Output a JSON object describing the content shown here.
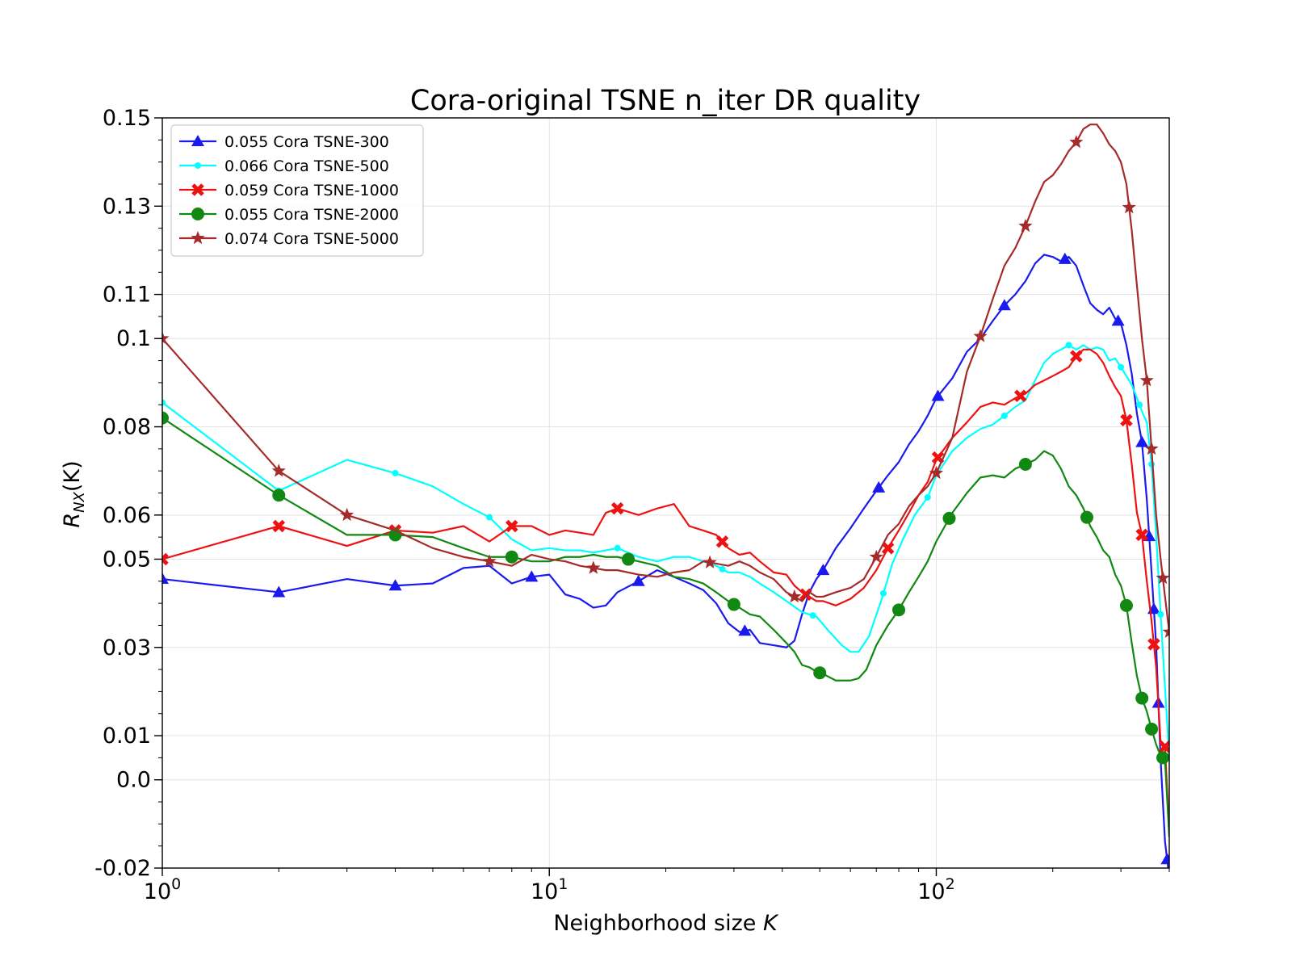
{
  "chart_data": {
    "type": "line",
    "title": "Cora-original TSNE n_iter DR quality",
    "xlabel": "Neighborhood size K",
    "xlabel_parts": {
      "text": "Neighborhood size ",
      "var": "K"
    },
    "ylabel": "R_NX(K)",
    "ylabel_parts": {
      "main": "R",
      "sub": "NX",
      "rest": "(K)"
    },
    "x_scale": "log",
    "xlim": [
      1,
      400
    ],
    "ylim": [
      -0.02,
      0.15
    ],
    "grid": true,
    "legend_position": "upper-left",
    "x_ticks": [
      {
        "value": 1,
        "base": "10",
        "exp": "0"
      },
      {
        "value": 10,
        "base": "10",
        "exp": "1"
      },
      {
        "value": 100,
        "base": "10",
        "exp": "2"
      }
    ],
    "y_ticks": [
      {
        "value": 0.15,
        "label": "0.15"
      },
      {
        "value": 0.13,
        "label": "0.13"
      },
      {
        "value": 0.11,
        "label": "0.11"
      },
      {
        "value": 0.1,
        "label": "0.1"
      },
      {
        "value": 0.08,
        "label": "0.08"
      },
      {
        "value": 0.06,
        "label": "0.06"
      },
      {
        "value": 0.05,
        "label": "0.05"
      },
      {
        "value": 0.03,
        "label": "0.03"
      },
      {
        "value": 0.01,
        "label": "0.01"
      },
      {
        "value": 0.0,
        "label": "0.0"
      },
      {
        "value": -0.02,
        "label": "-0.02"
      }
    ],
    "series": [
      {
        "name": "0.055 Cora TSNE-300",
        "color": "#1a1aee",
        "marker": "triangle",
        "x": [
          1,
          2,
          3,
          4,
          5,
          6,
          7,
          8,
          9,
          10,
          11,
          12,
          13,
          14,
          15,
          17,
          19,
          21,
          23,
          25,
          27,
          29,
          31,
          33,
          35,
          38,
          41,
          43,
          45,
          47,
          49,
          51,
          55,
          60,
          65,
          70,
          75,
          80,
          85,
          90,
          95,
          100,
          110,
          120,
          130,
          140,
          150,
          160,
          170,
          180,
          190,
          200,
          210,
          220,
          230,
          240,
          250,
          260,
          270,
          280,
          290,
          300,
          310,
          320,
          330,
          340,
          350,
          360,
          370,
          380,
          390,
          400
        ],
        "y": [
          0.0455,
          0.0425,
          0.0455,
          0.044,
          0.0445,
          0.048,
          0.0485,
          0.0445,
          0.046,
          0.0465,
          0.042,
          0.041,
          0.039,
          0.0395,
          0.0425,
          0.045,
          0.0475,
          0.046,
          0.0445,
          0.043,
          0.04,
          0.0355,
          0.0335,
          0.034,
          0.031,
          0.0305,
          0.03,
          0.0315,
          0.0375,
          0.0425,
          0.0455,
          0.0475,
          0.0525,
          0.057,
          0.0615,
          0.0655,
          0.069,
          0.072,
          0.076,
          0.079,
          0.0825,
          0.0865,
          0.091,
          0.097,
          0.1,
          0.104,
          0.1075,
          0.11,
          0.113,
          0.117,
          0.119,
          0.1185,
          0.1175,
          0.1185,
          0.1165,
          0.112,
          0.108,
          0.1065,
          0.1055,
          0.107,
          0.1045,
          0.1035,
          0.0985,
          0.092,
          0.083,
          0.0765,
          0.0635,
          0.047,
          0.0305,
          0.0045,
          -0.014,
          -0.022
        ]
      },
      {
        "name": "0.066 Cora TSNE-500",
        "color": "#00ffff",
        "marker": "dot",
        "x": [
          1,
          2,
          3,
          4,
          5,
          6,
          7,
          8,
          9,
          10,
          11,
          12,
          13,
          14,
          15,
          17,
          19,
          21,
          23,
          25,
          27,
          29,
          31,
          33,
          35,
          38,
          41,
          45,
          49,
          53,
          57,
          60,
          63,
          67,
          72,
          77,
          82,
          88,
          95,
          100,
          110,
          120,
          130,
          140,
          150,
          160,
          170,
          180,
          190,
          200,
          210,
          220,
          230,
          240,
          250,
          260,
          270,
          280,
          290,
          300,
          310,
          320,
          330,
          340,
          350,
          360,
          370,
          380,
          390,
          400
        ],
        "y": [
          0.0855,
          0.0655,
          0.0725,
          0.0695,
          0.0665,
          0.0625,
          0.0595,
          0.0545,
          0.052,
          0.0525,
          0.052,
          0.052,
          0.0515,
          0.052,
          0.0525,
          0.0505,
          0.0495,
          0.0505,
          0.0505,
          0.0495,
          0.0485,
          0.047,
          0.047,
          0.046,
          0.0445,
          0.0425,
          0.0405,
          0.038,
          0.037,
          0.0335,
          0.0305,
          0.029,
          0.029,
          0.0325,
          0.0405,
          0.049,
          0.0545,
          0.06,
          0.064,
          0.069,
          0.0745,
          0.0775,
          0.0795,
          0.0805,
          0.0825,
          0.0845,
          0.086,
          0.0905,
          0.0945,
          0.0965,
          0.0975,
          0.0985,
          0.0975,
          0.0985,
          0.0975,
          0.098,
          0.0975,
          0.095,
          0.0955,
          0.0935,
          0.0915,
          0.0895,
          0.0865,
          0.0835,
          0.081,
          0.0715,
          0.0555,
          0.0375,
          0.021,
          0.005
        ]
      },
      {
        "name": "0.059 Cora TSNE-1000",
        "color": "#ee1111",
        "marker": "x",
        "x": [
          1,
          2,
          3,
          4,
          5,
          6,
          7,
          8,
          9,
          10,
          11,
          12,
          13,
          14,
          15,
          17,
          19,
          21,
          23,
          25,
          27,
          29,
          31,
          33,
          35,
          38,
          41,
          43,
          45,
          47,
          49,
          51,
          55,
          60,
          65,
          70,
          75,
          80,
          85,
          90,
          95,
          100,
          110,
          120,
          130,
          140,
          150,
          160,
          170,
          180,
          190,
          200,
          210,
          220,
          230,
          240,
          250,
          260,
          270,
          280,
          290,
          300,
          310,
          320,
          330,
          340,
          350,
          360,
          370,
          380,
          390,
          400
        ],
        "y": [
          0.05,
          0.0575,
          0.053,
          0.0565,
          0.056,
          0.0575,
          0.054,
          0.0575,
          0.0575,
          0.0555,
          0.0565,
          0.056,
          0.0555,
          0.0605,
          0.0615,
          0.06,
          0.0615,
          0.0625,
          0.0575,
          0.0565,
          0.0555,
          0.0525,
          0.051,
          0.0515,
          0.0495,
          0.047,
          0.0465,
          0.044,
          0.0425,
          0.0415,
          0.0405,
          0.0405,
          0.0395,
          0.041,
          0.0435,
          0.0475,
          0.0525,
          0.0565,
          0.0605,
          0.0645,
          0.0675,
          0.0725,
          0.0775,
          0.081,
          0.0845,
          0.0855,
          0.085,
          0.0865,
          0.0875,
          0.0895,
          0.0905,
          0.0915,
          0.0925,
          0.0935,
          0.096,
          0.0975,
          0.0975,
          0.0965,
          0.0945,
          0.0915,
          0.089,
          0.087,
          0.0815,
          0.0715,
          0.0605,
          0.0555,
          0.045,
          0.036,
          0.0255,
          0.0085,
          0.0075,
          -0.012
        ]
      },
      {
        "name": "0.055 Cora TSNE-2000",
        "color": "#118811",
        "marker": "circle",
        "x": [
          1,
          2,
          3,
          4,
          5,
          6,
          7,
          8,
          9,
          10,
          11,
          12,
          13,
          14,
          15,
          17,
          19,
          21,
          23,
          25,
          27,
          29,
          31,
          33,
          35,
          38,
          41,
          43,
          45,
          47,
          49,
          51,
          55,
          60,
          63,
          66,
          70,
          75,
          80,
          85,
          90,
          95,
          100,
          110,
          120,
          130,
          140,
          150,
          160,
          170,
          180,
          190,
          200,
          210,
          220,
          230,
          240,
          250,
          260,
          270,
          280,
          290,
          300,
          310,
          320,
          330,
          340,
          350,
          360,
          370,
          380,
          390,
          400
        ],
        "y": [
          0.082,
          0.0645,
          0.0555,
          0.0555,
          0.055,
          0.0525,
          0.0505,
          0.0505,
          0.0495,
          0.0495,
          0.0505,
          0.0505,
          0.051,
          0.0505,
          0.0505,
          0.0495,
          0.0485,
          0.046,
          0.0455,
          0.0445,
          0.0425,
          0.0405,
          0.039,
          0.0375,
          0.037,
          0.034,
          0.031,
          0.029,
          0.026,
          0.0255,
          0.0245,
          0.024,
          0.0225,
          0.0225,
          0.023,
          0.025,
          0.0305,
          0.035,
          0.0385,
          0.0425,
          0.046,
          0.0495,
          0.054,
          0.0605,
          0.065,
          0.0685,
          0.069,
          0.0685,
          0.0705,
          0.0715,
          0.0725,
          0.0745,
          0.0735,
          0.0705,
          0.0665,
          0.0645,
          0.0615,
          0.0575,
          0.055,
          0.052,
          0.0505,
          0.0465,
          0.044,
          0.0395,
          0.031,
          0.0235,
          0.0185,
          0.0155,
          0.0115,
          0.008,
          0.0055,
          0.0045,
          -0.013
        ]
      },
      {
        "name": "0.074 Cora TSNE-5000",
        "color": "#a52a2a",
        "marker": "star",
        "x": [
          1,
          2,
          3,
          4,
          5,
          6,
          7,
          8,
          9,
          10,
          11,
          12,
          13,
          14,
          15,
          17,
          19,
          21,
          23,
          25,
          27,
          29,
          31,
          33,
          35,
          38,
          41,
          43,
          45,
          47,
          49,
          51,
          55,
          60,
          65,
          70,
          75,
          80,
          85,
          90,
          95,
          100,
          110,
          120,
          130,
          140,
          150,
          160,
          170,
          180,
          190,
          200,
          210,
          220,
          230,
          240,
          250,
          260,
          270,
          280,
          290,
          300,
          310,
          320,
          330,
          340,
          350,
          360,
          370,
          380,
          390,
          400
        ],
        "y": [
          0.1,
          0.07,
          0.06,
          0.0565,
          0.0525,
          0.0505,
          0.0495,
          0.0485,
          0.051,
          0.05,
          0.0495,
          0.0485,
          0.048,
          0.0475,
          0.0475,
          0.0465,
          0.046,
          0.047,
          0.0475,
          0.0495,
          0.049,
          0.0485,
          0.0495,
          0.0485,
          0.047,
          0.0455,
          0.0425,
          0.0415,
          0.0405,
          0.0425,
          0.0415,
          0.0415,
          0.0425,
          0.0435,
          0.0455,
          0.0505,
          0.0555,
          0.058,
          0.062,
          0.0645,
          0.0665,
          0.0695,
          0.0775,
          0.0925,
          0.1005,
          0.109,
          0.1165,
          0.1205,
          0.1255,
          0.131,
          0.1355,
          0.137,
          0.1395,
          0.1425,
          0.1445,
          0.1475,
          0.1485,
          0.1485,
          0.1465,
          0.144,
          0.1425,
          0.14,
          0.135,
          0.1245,
          0.112,
          0.1,
          0.0905,
          0.075,
          0.06,
          0.05,
          0.0415,
          0.0335
        ]
      }
    ]
  }
}
